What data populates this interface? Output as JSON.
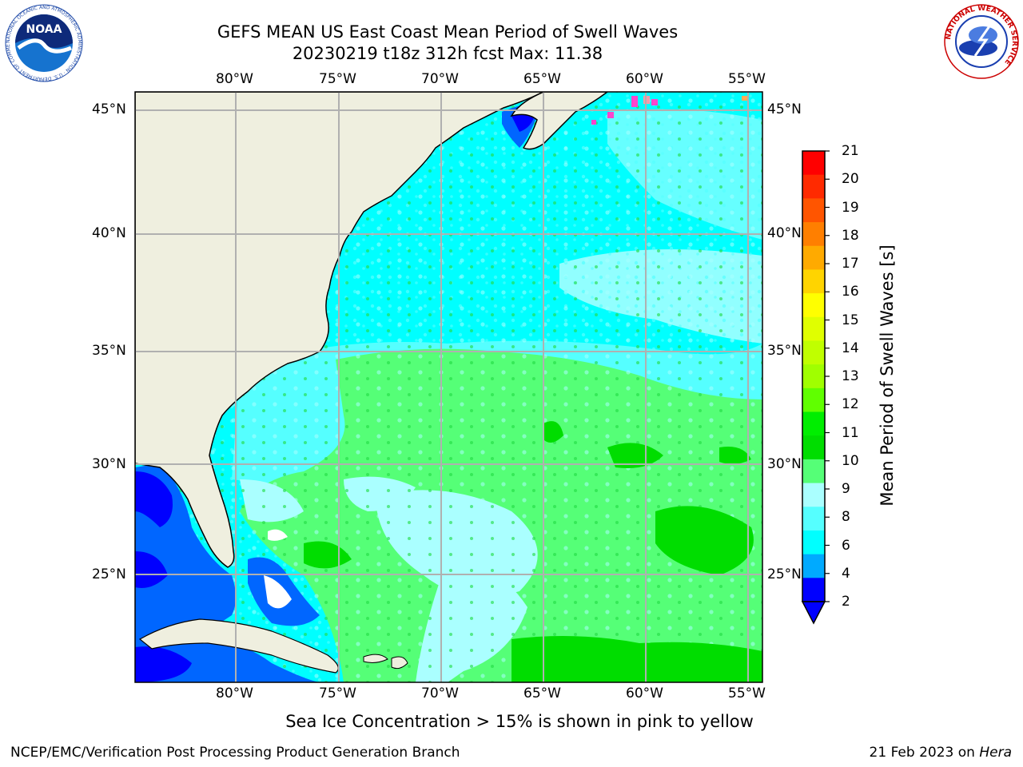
{
  "header": {
    "title": "GEFS MEAN US East Coast Mean Period of Swell Waves",
    "subtitle": "20230219 t18z 312h fcst   Max: 11.38"
  },
  "axes": {
    "longitude_labels": [
      "80°W",
      "75°W",
      "70°W",
      "65°W",
      "60°W",
      "55°W"
    ],
    "latitude_labels": [
      "45°N",
      "40°N",
      "35°N",
      "30°N",
      "25°N"
    ]
  },
  "colorbar": {
    "title": "Mean Period of Swell Waves [s]",
    "ticks": [
      "21",
      "20",
      "19",
      "18",
      "17",
      "16",
      "15",
      "14",
      "13",
      "12",
      "11",
      "10",
      "9",
      "8",
      "6",
      "4",
      "2"
    ],
    "colors_top_to_bottom": [
      "#ff0000",
      "#ff2a00",
      "#ff5500",
      "#ff7f00",
      "#ffaa00",
      "#ffd400",
      "#ffff00",
      "#e0ff00",
      "#c0ff00",
      "#a0ff00",
      "#60ff00",
      "#00ee00",
      "#00dd00",
      "#55ff77",
      "#aaffff",
      "#55ffff",
      "#00ffff",
      "#00aaff",
      "#0000ff"
    ]
  },
  "footer": {
    "note": "Sea Ice Concentration > 15% is shown in pink to yellow",
    "credit_left": "NCEP/EMC/Verification Post Processing Product Generation Branch",
    "date": "21 Feb 2023 on",
    "machine": "Hera"
  },
  "logos": {
    "noaa_text": "NOAA",
    "noaa_ring": "NATIONAL OCEANIC AND ATMOSPHERIC ADMINISTRATION · U.S. DEPARTMENT OF COMMERCE",
    "nws_ring": "NATIONAL WEATHER SERVICE"
  },
  "colors": {
    "land": "#efefdf",
    "ocean_cyan": "#00ffff",
    "ocean_light_cyan": "#55ffff",
    "pale_cyan": "#aaffff",
    "green_light": "#55ff77",
    "green": "#33ee55",
    "green_dark": "#00dd00",
    "blue_low": "#0066ff",
    "blue_deep": "#0000ff",
    "gridline": "#b0b0b0"
  }
}
